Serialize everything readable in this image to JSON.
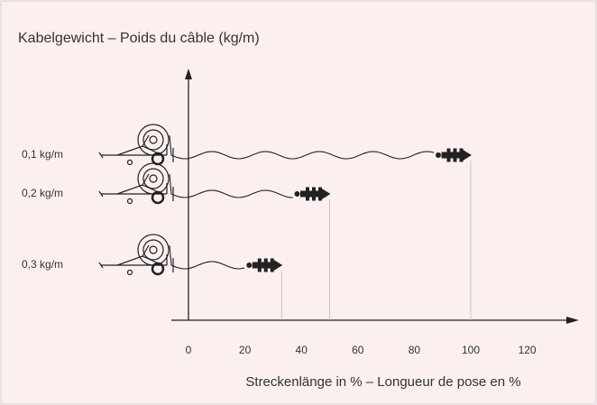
{
  "chart_data": {
    "type": "cable",
    "title": "Kabelgewicht – Poids du câble (kg/m)",
    "x_label": "Streckenlänge in % – Longueur de pose en %",
    "categories": [
      "0,1 kg/m",
      "0,2 kg/m",
      "0,3 kg/m"
    ],
    "values": [
      100,
      50,
      33
    ],
    "color": "#222222",
    "xlim": [
      0,
      137
    ],
    "xticks": [
      0,
      20,
      40,
      60,
      80,
      100,
      120
    ]
  }
}
